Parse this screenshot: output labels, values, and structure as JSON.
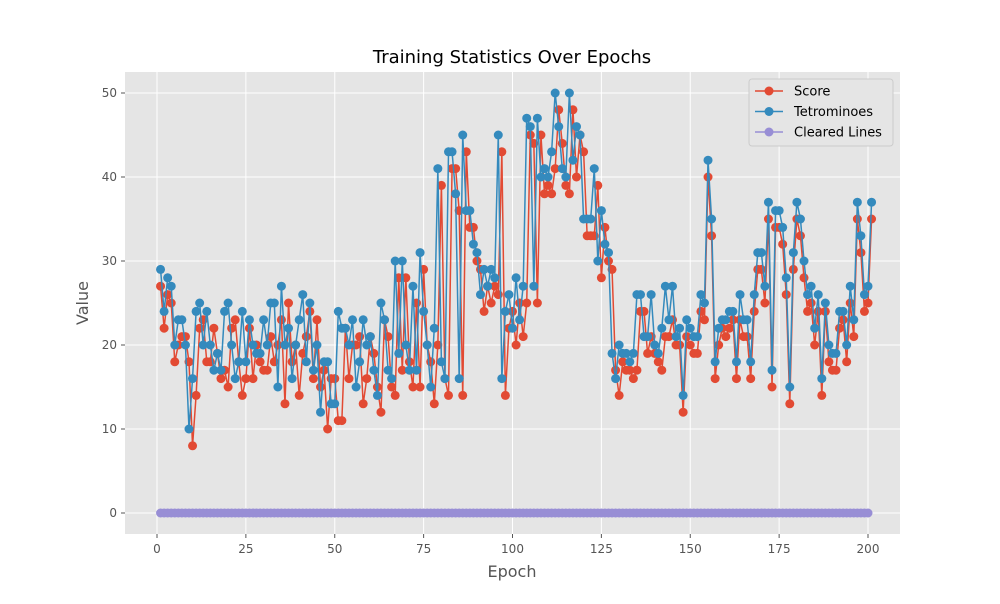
{
  "chart_data": {
    "type": "line",
    "title": "Training Statistics Over Epochs",
    "xlabel": "Epoch",
    "ylabel": "Value",
    "xlim": [
      -9,
      209
    ],
    "ylim": [
      -2.5,
      52.5
    ],
    "x_ticks": [
      0,
      25,
      50,
      75,
      100,
      125,
      150,
      175,
      200
    ],
    "y_ticks": [
      0,
      10,
      20,
      30,
      40,
      50
    ],
    "grid": true,
    "legend_position": "top-right",
    "style": "ggplot",
    "series": [
      {
        "name": "Score",
        "color": "#E24A33",
        "values": [
          27,
          22,
          26,
          25,
          18,
          20,
          21,
          21,
          18,
          8,
          14,
          22,
          23,
          18,
          18,
          22,
          19,
          16,
          17,
          15,
          22,
          23,
          18,
          14,
          16,
          22,
          16,
          20,
          18,
          17,
          17,
          21,
          18,
          20,
          23,
          13,
          25,
          18,
          20,
          14,
          19,
          21,
          24,
          16,
          23,
          15,
          17,
          10,
          16,
          16,
          11,
          11,
          22,
          16,
          20,
          20,
          21,
          13,
          16,
          21,
          19,
          15,
          12,
          23,
          21,
          15,
          14,
          28,
          17,
          28,
          18,
          15,
          25,
          15,
          29,
          20,
          18,
          13,
          20,
          39,
          16,
          14,
          41,
          41,
          36,
          14,
          43,
          34,
          34,
          30,
          29,
          24,
          27,
          25,
          27,
          26,
          43,
          14,
          22,
          24,
          20,
          25,
          21,
          25,
          45,
          44,
          25,
          45,
          38,
          39,
          38,
          41,
          48,
          44,
          39,
          38,
          48,
          40,
          45,
          43,
          33,
          33,
          33,
          39,
          28,
          34,
          30,
          29,
          17,
          14,
          18,
          17,
          17,
          16,
          17,
          24,
          24,
          19,
          21,
          19,
          18,
          17,
          21,
          21,
          23,
          20,
          20,
          12,
          21,
          20,
          19,
          19,
          24,
          23,
          40,
          33,
          16,
          20,
          22,
          21,
          22,
          23,
          16,
          23,
          21,
          21,
          16,
          24,
          29,
          29,
          25,
          35,
          15,
          34,
          34,
          32,
          26,
          13,
          29,
          35,
          33,
          28,
          24,
          25,
          20,
          24,
          14,
          24,
          18,
          17,
          17,
          22,
          23,
          18,
          25,
          21,
          35,
          31,
          24,
          25,
          35
        ]
      },
      {
        "name": "Tetrominoes",
        "color": "#348ABD",
        "values": [
          29,
          24,
          28,
          27,
          20,
          23,
          23,
          20,
          10,
          16,
          24,
          25,
          20,
          24,
          20,
          17,
          19,
          17,
          24,
          25,
          20,
          16,
          18,
          24,
          18,
          23,
          20,
          19,
          19,
          23,
          20,
          25,
          25,
          15,
          27,
          20,
          22,
          16,
          20,
          23,
          26,
          18,
          25,
          17,
          20,
          12,
          18,
          18,
          13,
          13,
          24,
          22,
          22,
          20,
          23,
          15,
          18,
          23,
          20,
          21,
          17,
          14,
          25,
          23,
          17,
          16,
          30,
          19,
          30,
          20,
          17,
          27,
          17,
          31,
          24,
          20,
          15,
          22,
          41,
          18,
          16,
          43,
          43,
          38,
          16,
          45,
          36,
          36,
          32,
          31,
          26,
          29,
          27,
          29,
          28,
          45,
          16,
          24,
          26,
          22,
          28,
          23,
          27,
          47,
          46,
          27,
          47,
          40,
          41,
          40,
          43,
          50,
          46,
          41,
          40,
          50,
          42,
          46,
          45,
          35,
          35,
          35,
          41,
          30,
          36,
          32,
          31,
          19,
          16,
          20,
          19,
          19,
          18,
          19,
          26,
          26,
          21,
          21,
          26,
          20,
          19,
          22,
          27,
          23,
          27,
          21,
          22,
          14,
          23,
          22,
          21,
          21,
          26,
          25,
          42,
          35,
          18,
          22,
          23,
          23,
          24,
          24,
          18,
          26,
          23,
          23,
          18,
          26,
          31,
          31,
          27,
          37,
          17,
          36,
          36,
          34,
          28,
          15,
          31,
          37,
          35,
          30,
          26,
          27,
          22,
          26,
          16,
          25,
          20,
          19,
          19,
          24,
          24,
          20,
          27,
          23,
          37,
          33,
          26,
          27,
          37
        ]
      },
      {
        "name": "Cleared Lines",
        "color": "#988ED5",
        "values": [
          0,
          0,
          0,
          0,
          0,
          0,
          0,
          0,
          0,
          0,
          0,
          0,
          0,
          0,
          0,
          0,
          0,
          0,
          0,
          0,
          0,
          0,
          0,
          0,
          0,
          0,
          0,
          0,
          0,
          0,
          0,
          0,
          0,
          0,
          0,
          0,
          0,
          0,
          0,
          0,
          0,
          0,
          0,
          0,
          0,
          0,
          0,
          0,
          0,
          0,
          0,
          0,
          0,
          0,
          0,
          0,
          0,
          0,
          0,
          0,
          0,
          0,
          0,
          0,
          0,
          0,
          0,
          0,
          0,
          0,
          0,
          0,
          0,
          0,
          0,
          0,
          0,
          0,
          0,
          0,
          0,
          0,
          0,
          0,
          0,
          0,
          0,
          0,
          0,
          0,
          0,
          0,
          0,
          0,
          0,
          0,
          0,
          0,
          0,
          0,
          0,
          0,
          0,
          0,
          0,
          0,
          0,
          0,
          0,
          0,
          0,
          0,
          0,
          0,
          0,
          0,
          0,
          0,
          0,
          0,
          0,
          0,
          0,
          0,
          0,
          0,
          0,
          0,
          0,
          0,
          0,
          0,
          0,
          0,
          0,
          0,
          0,
          0,
          0,
          0,
          0,
          0,
          0,
          0,
          0,
          0,
          0,
          0,
          0,
          0,
          0,
          0,
          0,
          0,
          0,
          0,
          0,
          0,
          0,
          0,
          0,
          0,
          0,
          0,
          0,
          0,
          0,
          0,
          0,
          0,
          0,
          0,
          0,
          0,
          0,
          0,
          0,
          0,
          0,
          0,
          0,
          0,
          0,
          0,
          0,
          0,
          0,
          0,
          0,
          0,
          0,
          0,
          0,
          0,
          0,
          0,
          0,
          0,
          0,
          0
        ]
      }
    ]
  }
}
